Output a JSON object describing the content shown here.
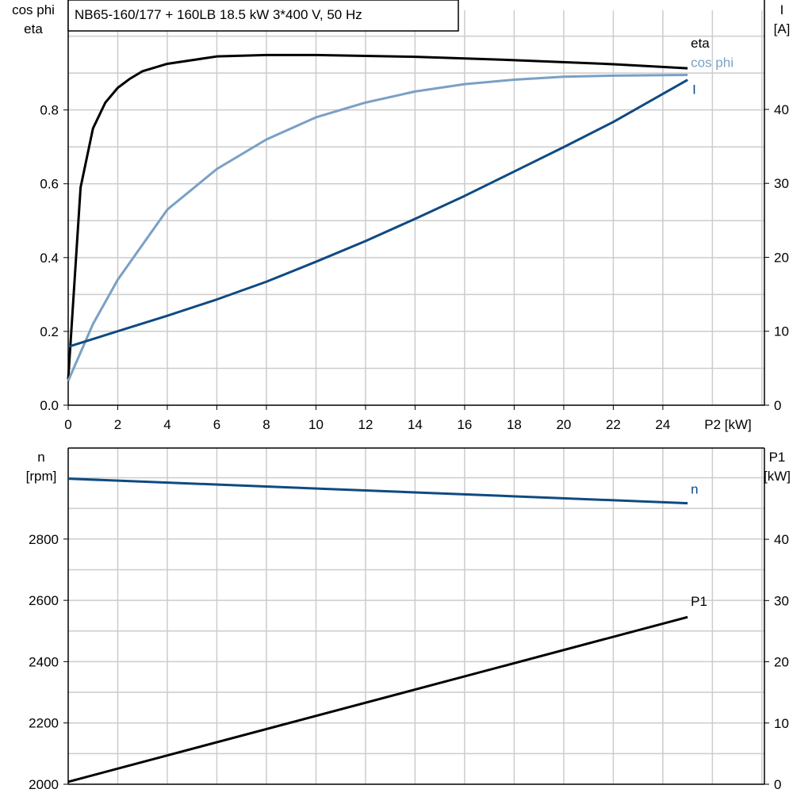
{
  "title": "NB65-160/177 + 160LB   18.5 kW   3*400 V, 50 Hz",
  "colors": {
    "eta": "#000000",
    "cos_phi": "#7aa0c4",
    "I": "#0f4a82",
    "n": "#0f4a82",
    "P1": "#000000",
    "grid": "#cccccc"
  },
  "chart_data": [
    {
      "type": "line",
      "xlabel": "P2 [kW]",
      "ylabel_left": [
        "cos phi",
        "eta"
      ],
      "ylabel_right": [
        "I",
        "[A]"
      ],
      "xlim": [
        0,
        28.1
      ],
      "xticks": [
        0,
        2,
        4,
        6,
        8,
        10,
        12,
        14,
        16,
        18,
        20,
        22,
        24
      ],
      "ylim_left": [
        0,
        1.07
      ],
      "yticks_left": [
        "0.0",
        "0.2",
        "0.4",
        "0.6",
        "0.8"
      ],
      "ylim_right": [
        0,
        53.4
      ],
      "yticks_right": [
        "0",
        "10",
        "20",
        "30",
        "40"
      ],
      "grid": true,
      "series": [
        {
          "name": "eta",
          "axis": "left",
          "color": "#000000",
          "x": [
            0,
            0.5,
            1,
            1.5,
            2,
            2.5,
            3,
            4,
            6,
            8,
            10,
            14,
            18,
            22,
            25
          ],
          "y": [
            0.07,
            0.59,
            0.75,
            0.82,
            0.86,
            0.885,
            0.905,
            0.925,
            0.945,
            0.949,
            0.949,
            0.944,
            0.935,
            0.924,
            0.913
          ]
        },
        {
          "name": "cos phi",
          "axis": "left",
          "color": "#7aa0c4",
          "x": [
            0,
            1,
            2,
            4,
            6,
            8,
            10,
            12,
            14,
            16,
            18,
            20,
            22,
            25
          ],
          "y": [
            0.066,
            0.22,
            0.34,
            0.53,
            0.64,
            0.72,
            0.78,
            0.82,
            0.85,
            0.87,
            0.882,
            0.89,
            0.893,
            0.895
          ]
        },
        {
          "name": "I",
          "axis": "right",
          "color": "#0f4a82",
          "x": [
            0,
            2,
            4,
            6,
            8,
            10,
            12,
            14,
            16,
            18,
            20,
            22,
            25
          ],
          "y": [
            7.9,
            10,
            12.1,
            14.3,
            16.7,
            19.4,
            22.2,
            25.2,
            28.3,
            31.6,
            34.9,
            38.3,
            44
          ]
        }
      ]
    },
    {
      "type": "line",
      "ylabel_left": [
        "n",
        "[rpm]"
      ],
      "ylabel_right": [
        "P1",
        "[kW]"
      ],
      "xlim": [
        0,
        28.1
      ],
      "ylim_left": [
        2000,
        3097
      ],
      "yticks_left": [
        "2000",
        "2200",
        "2400",
        "2600",
        "2800"
      ],
      "ylim_right": [
        0,
        54.9
      ],
      "yticks_right": [
        "0",
        "10",
        "20",
        "30",
        "40"
      ],
      "grid": true,
      "series": [
        {
          "name": "n",
          "axis": "left",
          "color": "#0f4a82",
          "x": [
            0,
            25
          ],
          "y": [
            2997,
            2917
          ]
        },
        {
          "name": "P1",
          "axis": "right",
          "color": "#000000",
          "x": [
            0,
            25
          ],
          "y": [
            0.4,
            27.3
          ]
        }
      ]
    }
  ]
}
